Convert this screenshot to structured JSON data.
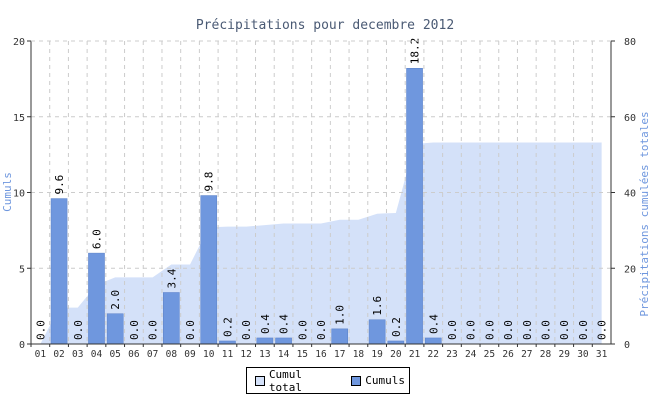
{
  "chart_data": {
    "type": "bar",
    "title": "Précipitations pour decembre 2012",
    "ylabel_left": "Cumuls",
    "ylabel_right": "Précipitations cumulées totales",
    "ylim_left": [
      0,
      20
    ],
    "ylim_right": [
      0,
      80
    ],
    "yticks_left": [
      "0",
      "5",
      "10",
      "15",
      "20"
    ],
    "yticks_right": [
      "0",
      "20",
      "40",
      "60",
      "80"
    ],
    "grid": true,
    "legend_placement": "bottom-center",
    "categories": [
      "01",
      "02",
      "03",
      "04",
      "05",
      "06",
      "07",
      "08",
      "09",
      "10",
      "11",
      "12",
      "13",
      "14",
      "15",
      "16",
      "17",
      "18",
      "19",
      "20",
      "21",
      "22",
      "23",
      "24",
      "25",
      "26",
      "27",
      "28",
      "29",
      "30",
      "31"
    ],
    "series": [
      {
        "name": "Cumul total",
        "type": "area",
        "axis": "right",
        "color": "#d4e1f9",
        "values": [
          0.0,
          9.6,
          9.6,
          15.6,
          17.6,
          17.6,
          17.6,
          21.0,
          21.0,
          30.8,
          31.0,
          31.0,
          31.4,
          31.8,
          31.8,
          31.8,
          32.8,
          32.8,
          34.4,
          34.6,
          52.8,
          53.2,
          53.2,
          53.2,
          53.2,
          53.2,
          53.2,
          53.2,
          53.2,
          53.2,
          53.2
        ]
      },
      {
        "name": "Cumuls",
        "type": "bar",
        "axis": "left",
        "color": "#6f97de",
        "values": [
          0.0,
          9.6,
          0.0,
          6.0,
          2.0,
          0.0,
          0.0,
          3.4,
          0.0,
          9.8,
          0.2,
          0.0,
          0.4,
          0.4,
          0.0,
          0.0,
          1.0,
          null,
          1.6,
          0.2,
          18.2,
          0.4,
          0.0,
          0.0,
          0.0,
          0.0,
          0.0,
          0.0,
          0.0,
          0.0,
          0.0
        ],
        "labels": [
          "0.0",
          "9.6",
          "0.0",
          "6.0",
          "2.0",
          "0.0",
          "0.0",
          "3.4",
          "0.0",
          "9.8",
          "0.2",
          "0.0",
          "0.4",
          "0.4",
          "0.0",
          "0.0",
          "1.0",
          "",
          "1.6",
          "0.2",
          "18.2",
          "0.4",
          "0.0",
          "0.0",
          "0.0",
          "0.0",
          "0.0",
          "0.0",
          "0.0",
          "0.0",
          "0.0"
        ]
      }
    ],
    "colors": {
      "title": "#4a5a74",
      "axis_label": "#6f97de",
      "tick": "#333333",
      "grid": "#cccccc"
    }
  }
}
